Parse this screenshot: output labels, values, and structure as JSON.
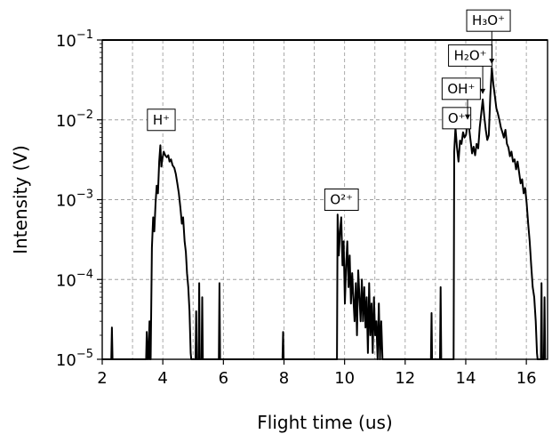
{
  "chart_data": {
    "type": "line",
    "xlabel": "Flight time (us)",
    "ylabel": "Intensity (V)",
    "xlim": [
      2,
      16.7
    ],
    "ylim": [
      1e-05,
      0.1
    ],
    "yscale": "log",
    "grid": true,
    "x_ticks": [
      2,
      4,
      6,
      8,
      10,
      12,
      14,
      16
    ],
    "y_ticks": [
      {
        "value": 1e-05,
        "base": "10",
        "exp": "−5"
      },
      {
        "value": 0.0001,
        "base": "10",
        "exp": "−4"
      },
      {
        "value": 0.001,
        "base": "10",
        "exp": "−3"
      },
      {
        "value": 0.01,
        "base": "10",
        "exp": "−2"
      },
      {
        "value": 0.1,
        "base": "10",
        "exp": "−1"
      }
    ],
    "series": [
      {
        "color": "#000000",
        "points": [
          [
            2.0,
            1e-05
          ],
          [
            2.3,
            1e-05
          ],
          [
            2.32,
            2.5e-05
          ],
          [
            2.34,
            1e-05
          ],
          [
            3.45,
            1e-05
          ],
          [
            3.47,
            2.2e-05
          ],
          [
            3.5,
            1e-05
          ],
          [
            3.52,
            1e-05
          ],
          [
            3.56,
            3e-05
          ],
          [
            3.58,
            1e-05
          ],
          [
            3.6,
            1e-05
          ],
          [
            3.64,
            0.00025
          ],
          [
            3.68,
            0.0006
          ],
          [
            3.72,
            0.0004
          ],
          [
            3.76,
            0.0009
          ],
          [
            3.8,
            0.0015
          ],
          [
            3.84,
            0.0012
          ],
          [
            3.88,
            0.003
          ],
          [
            3.92,
            0.0048
          ],
          [
            3.95,
            0.0026
          ],
          [
            3.99,
            0.0033
          ],
          [
            4.03,
            0.004
          ],
          [
            4.08,
            0.0036
          ],
          [
            4.13,
            0.0034
          ],
          [
            4.18,
            0.0036
          ],
          [
            4.22,
            0.003
          ],
          [
            4.27,
            0.0032
          ],
          [
            4.32,
            0.0027
          ],
          [
            4.38,
            0.0025
          ],
          [
            4.43,
            0.0021
          ],
          [
            4.48,
            0.0016
          ],
          [
            4.53,
            0.0012
          ],
          [
            4.58,
            0.0008
          ],
          [
            4.63,
            0.0005
          ],
          [
            4.67,
            0.0006
          ],
          [
            4.72,
            0.0003
          ],
          [
            4.76,
            0.00022
          ],
          [
            4.8,
            0.00012
          ],
          [
            4.84,
            8e-05
          ],
          [
            4.88,
            4e-05
          ],
          [
            4.92,
            1.2e-05
          ],
          [
            4.94,
            1e-05
          ],
          [
            5.08,
            1e-05
          ],
          [
            5.1,
            4e-05
          ],
          [
            5.12,
            1e-05
          ],
          [
            5.18,
            1e-05
          ],
          [
            5.2,
            9e-05
          ],
          [
            5.22,
            1e-05
          ],
          [
            5.28,
            1e-05
          ],
          [
            5.3,
            6e-05
          ],
          [
            5.32,
            1e-05
          ],
          [
            5.85,
            1e-05
          ],
          [
            5.87,
            9e-05
          ],
          [
            5.89,
            1e-05
          ],
          [
            7.95,
            1e-05
          ],
          [
            7.97,
            2.2e-05
          ],
          [
            7.99,
            1e-05
          ],
          [
            9.75,
            1e-05
          ],
          [
            9.77,
            0.00065
          ],
          [
            9.81,
            0.0002
          ],
          [
            9.85,
            0.0004
          ],
          [
            9.89,
            0.0006
          ],
          [
            9.93,
            0.00015
          ],
          [
            9.97,
            0.0003
          ],
          [
            10.01,
            5e-05
          ],
          [
            10.05,
            0.00015
          ],
          [
            10.09,
            0.0003
          ],
          [
            10.13,
            8e-05
          ],
          [
            10.17,
            0.0002
          ],
          [
            10.21,
            5e-05
          ],
          [
            10.25,
            0.00012
          ],
          [
            10.29,
            6e-05
          ],
          [
            10.33,
            3e-05
          ],
          [
            10.37,
            9e-05
          ],
          [
            10.41,
            2e-05
          ],
          [
            10.45,
            0.00013
          ],
          [
            10.49,
            6e-05
          ],
          [
            10.53,
            3e-05
          ],
          [
            10.57,
            0.0001
          ],
          [
            10.61,
            3e-05
          ],
          [
            10.65,
            8e-05
          ],
          [
            10.69,
            2.5e-05
          ],
          [
            10.73,
            6e-05
          ],
          [
            10.77,
            1.2e-05
          ],
          [
            10.81,
            9e-05
          ],
          [
            10.85,
            2e-05
          ],
          [
            10.89,
            5e-05
          ],
          [
            10.93,
            1.2e-05
          ],
          [
            10.97,
            6e-05
          ],
          [
            11.01,
            2e-05
          ],
          [
            11.05,
            3e-05
          ],
          [
            11.09,
            1e-05
          ],
          [
            11.13,
            5e-05
          ],
          [
            11.17,
            1e-05
          ],
          [
            11.21,
            3e-05
          ],
          [
            11.25,
            1e-05
          ],
          [
            12.85,
            1e-05
          ],
          [
            12.87,
            3.8e-05
          ],
          [
            12.89,
            1e-05
          ],
          [
            13.15,
            1e-05
          ],
          [
            13.17,
            8e-05
          ],
          [
            13.19,
            1e-05
          ],
          [
            13.6,
            1e-05
          ],
          [
            13.62,
            0.004
          ],
          [
            13.66,
            0.008
          ],
          [
            13.71,
            0.0045
          ],
          [
            13.76,
            0.003
          ],
          [
            13.81,
            0.0055
          ],
          [
            13.86,
            0.005
          ],
          [
            13.91,
            0.007
          ],
          [
            13.96,
            0.006
          ],
          [
            14.01,
            0.0065
          ],
          [
            14.06,
            0.009
          ],
          [
            14.11,
            0.008
          ],
          [
            14.16,
            0.0055
          ],
          [
            14.21,
            0.0038
          ],
          [
            14.26,
            0.0046
          ],
          [
            14.31,
            0.0036
          ],
          [
            14.36,
            0.005
          ],
          [
            14.41,
            0.0044
          ],
          [
            14.46,
            0.008
          ],
          [
            14.51,
            0.012
          ],
          [
            14.56,
            0.018
          ],
          [
            14.61,
            0.011
          ],
          [
            14.66,
            0.0075
          ],
          [
            14.71,
            0.0056
          ],
          [
            14.76,
            0.0064
          ],
          [
            14.81,
            0.02
          ],
          [
            14.86,
            0.045
          ],
          [
            14.91,
            0.028
          ],
          [
            14.96,
            0.02
          ],
          [
            15.01,
            0.014
          ],
          [
            15.06,
            0.012
          ],
          [
            15.11,
            0.01
          ],
          [
            15.16,
            0.008
          ],
          [
            15.21,
            0.007
          ],
          [
            15.26,
            0.006
          ],
          [
            15.31,
            0.0075
          ],
          [
            15.36,
            0.005
          ],
          [
            15.41,
            0.0045
          ],
          [
            15.46,
            0.0035
          ],
          [
            15.51,
            0.004
          ],
          [
            15.56,
            0.003
          ],
          [
            15.61,
            0.0032
          ],
          [
            15.66,
            0.0024
          ],
          [
            15.71,
            0.003
          ],
          [
            15.76,
            0.0022
          ],
          [
            15.81,
            0.0016
          ],
          [
            15.86,
            0.0018
          ],
          [
            15.91,
            0.0012
          ],
          [
            15.96,
            0.0014
          ],
          [
            16.01,
            0.0009
          ],
          [
            16.06,
            0.0005
          ],
          [
            16.11,
            0.0003
          ],
          [
            16.16,
            0.00015
          ],
          [
            16.21,
            8e-05
          ],
          [
            16.26,
            6e-05
          ],
          [
            16.31,
            3e-05
          ],
          [
            16.35,
            1.2e-05
          ],
          [
            16.37,
            1e-05
          ],
          [
            16.48,
            1e-05
          ],
          [
            16.5,
            9e-05
          ],
          [
            16.52,
            1e-05
          ],
          [
            16.58,
            1e-05
          ],
          [
            16.6,
            6e-05
          ],
          [
            16.62,
            1e-05
          ]
        ]
      }
    ],
    "annotations": [
      {
        "label": "H⁺",
        "x": 3.95,
        "y": 0.01,
        "arrow": false
      },
      {
        "label": "O²⁺",
        "x": 9.9,
        "y": 0.001,
        "arrow": false
      },
      {
        "label": "O⁺",
        "x": 13.7,
        "y": 0.0105,
        "arrow": false
      },
      {
        "label": "OH⁺",
        "x": 13.85,
        "y": 0.0245,
        "arrow": true,
        "arrow_to": [
          14.06,
          0.01
        ]
      },
      {
        "label": "H₂O⁺",
        "x": 14.15,
        "y": 0.064,
        "arrow": true,
        "arrow_to": [
          14.56,
          0.021
        ]
      },
      {
        "label": "H₃O⁺",
        "x": 14.75,
        "y": 0.175,
        "arrow": true,
        "arrow_to": [
          14.86,
          0.05
        ]
      }
    ]
  }
}
